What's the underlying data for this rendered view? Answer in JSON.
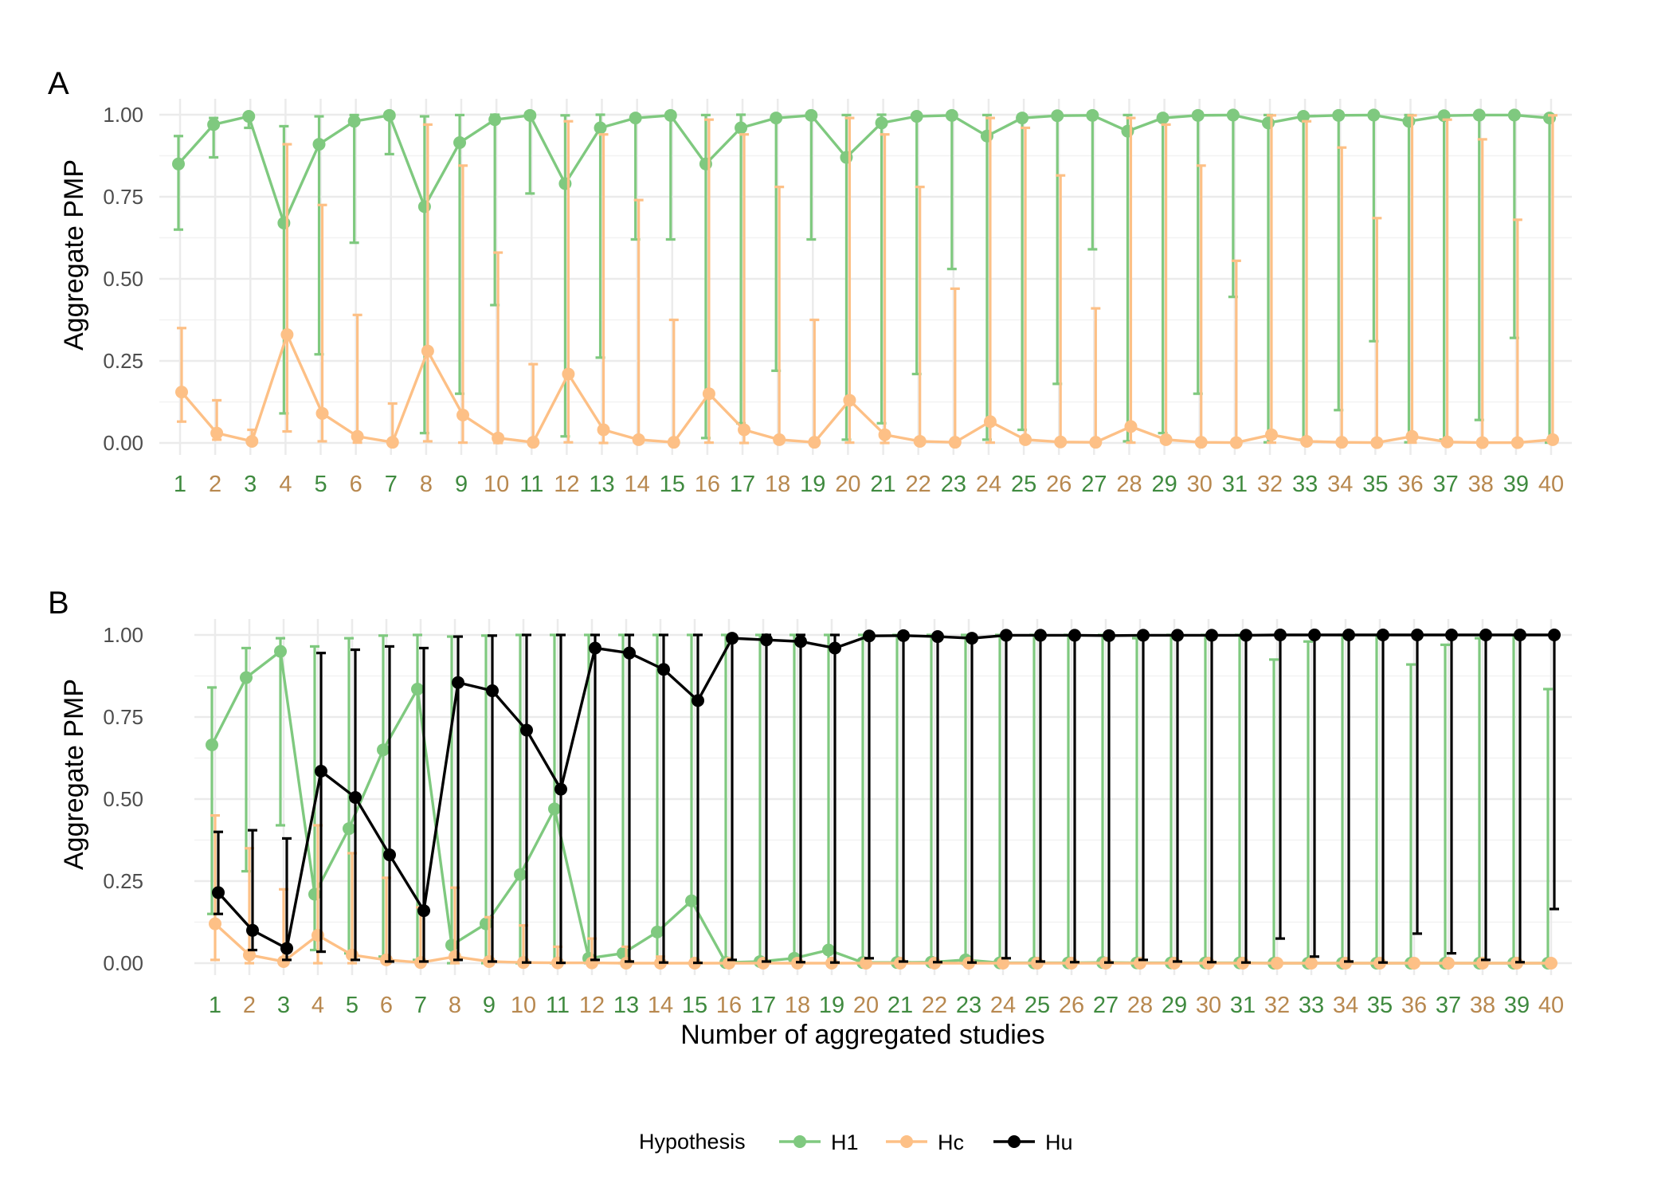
{
  "figure": {
    "legend_title": "Hypothesis",
    "xlabel": "Number of aggregated studies",
    "colors": {
      "H1": "#7fc97f",
      "Hc": "#fdc086",
      "Hu": "#000000",
      "tick_green": "#3f8a3f",
      "tick_orange": "#b8884f"
    }
  },
  "chart_data": [
    {
      "panel_label": "A",
      "type": "line",
      "ylabel": "Aggregate PMP",
      "ylim": [
        0,
        1
      ],
      "y_ticks": [
        "0.00",
        "0.25",
        "0.50",
        "0.75",
        "1.00"
      ],
      "x_ticks": [
        "1",
        "2",
        "3",
        "4",
        "5",
        "6",
        "7",
        "8",
        "9",
        "10",
        "11",
        "12",
        "13",
        "14",
        "15",
        "16",
        "17",
        "18",
        "19",
        "20",
        "21",
        "22",
        "23",
        "24",
        "25",
        "26",
        "27",
        "28",
        "29",
        "30",
        "31",
        "32",
        "33",
        "34",
        "35",
        "36",
        "37",
        "38",
        "39",
        "40"
      ],
      "x_tick_colors": [
        "green",
        "orange",
        "green",
        "orange",
        "green",
        "orange",
        "green",
        "orange",
        "green",
        "orange",
        "green",
        "orange",
        "green",
        "orange",
        "green",
        "orange",
        "green",
        "orange",
        "green",
        "orange",
        "green",
        "orange",
        "green",
        "orange",
        "green",
        "orange",
        "green",
        "orange",
        "green",
        "orange",
        "green",
        "orange",
        "green",
        "orange",
        "green",
        "orange",
        "green",
        "orange",
        "green",
        "orange"
      ],
      "grid": true,
      "series": [
        {
          "name": "H1",
          "color": "#7fc97f",
          "x": [
            1,
            2,
            3,
            4,
            5,
            6,
            7,
            8,
            9,
            10,
            11,
            12,
            13,
            14,
            15,
            16,
            17,
            18,
            19,
            20,
            21,
            22,
            23,
            24,
            25,
            26,
            27,
            28,
            29,
            30,
            31,
            32,
            33,
            34,
            35,
            36,
            37,
            38,
            39,
            40
          ],
          "values": [
            0.85,
            0.97,
            0.995,
            0.67,
            0.91,
            0.98,
            0.998,
            0.72,
            0.915,
            0.985,
            0.998,
            0.79,
            0.96,
            0.99,
            0.998,
            0.85,
            0.96,
            0.99,
            0.998,
            0.87,
            0.975,
            0.995,
            0.998,
            0.935,
            0.99,
            0.997,
            0.998,
            0.95,
            0.99,
            0.998,
            0.999,
            0.975,
            0.995,
            0.998,
            0.999,
            0.98,
            0.997,
            0.999,
            0.999,
            0.99
          ],
          "lower": [
            0.65,
            0.87,
            0.96,
            0.09,
            0.27,
            0.61,
            0.88,
            0.03,
            0.15,
            0.42,
            0.76,
            0.02,
            0.26,
            0.62,
            0.62,
            0.015,
            0.06,
            0.22,
            0.62,
            0.01,
            0.06,
            0.21,
            0.53,
            0.01,
            0.04,
            0.18,
            0.59,
            0.005,
            0.03,
            0.15,
            0.445,
            0.002,
            0.01,
            0.1,
            0.31,
            0.002,
            0.01,
            0.07,
            0.32,
            0.001
          ],
          "upper": [
            0.935,
            0.99,
            0.999,
            0.965,
            0.995,
            0.999,
            1.0,
            0.995,
            0.999,
            1.0,
            1.0,
            0.998,
            1.0,
            1.0,
            1.0,
            0.999,
            1.0,
            1.0,
            1.0,
            0.999,
            1.0,
            1.0,
            1.0,
            0.999,
            1.0,
            1.0,
            1.0,
            0.999,
            1.0,
            1.0,
            1.0,
            0.999,
            1.0,
            1.0,
            1.0,
            0.999,
            1.0,
            1.0,
            1.0,
            0.999
          ]
        },
        {
          "name": "Hc",
          "color": "#fdc086",
          "x": [
            1,
            2,
            3,
            4,
            5,
            6,
            7,
            8,
            9,
            10,
            11,
            12,
            13,
            14,
            15,
            16,
            17,
            18,
            19,
            20,
            21,
            22,
            23,
            24,
            25,
            26,
            27,
            28,
            29,
            30,
            31,
            32,
            33,
            34,
            35,
            36,
            37,
            38,
            39,
            40
          ],
          "values": [
            0.155,
            0.03,
            0.005,
            0.33,
            0.09,
            0.02,
            0.002,
            0.28,
            0.085,
            0.015,
            0.002,
            0.21,
            0.04,
            0.01,
            0.002,
            0.15,
            0.04,
            0.01,
            0.002,
            0.13,
            0.025,
            0.005,
            0.002,
            0.065,
            0.01,
            0.003,
            0.002,
            0.05,
            0.01,
            0.002,
            0.001,
            0.025,
            0.005,
            0.002,
            0.001,
            0.02,
            0.003,
            0.001,
            0.001,
            0.01
          ],
          "lower": [
            0.065,
            0.01,
            0.001,
            0.035,
            0.005,
            0.001,
            0.0,
            0.005,
            0.001,
            0.0,
            0.0,
            0.002,
            0.0,
            0.0,
            0.0,
            0.001,
            0.0,
            0.0,
            0.0,
            0.001,
            0.0,
            0.0,
            0.0,
            0.001,
            0.0,
            0.0,
            0.0,
            0.001,
            0.0,
            0.0,
            0.0,
            0.001,
            0.0,
            0.0,
            0.0,
            0.001,
            0.0,
            0.0,
            0.0,
            0.001
          ],
          "upper": [
            0.35,
            0.13,
            0.04,
            0.91,
            0.725,
            0.39,
            0.12,
            0.97,
            0.845,
            0.58,
            0.24,
            0.98,
            0.94,
            0.74,
            0.375,
            0.985,
            0.94,
            0.78,
            0.375,
            0.99,
            0.94,
            0.78,
            0.47,
            0.99,
            0.96,
            0.815,
            0.41,
            0.99,
            0.97,
            0.845,
            0.555,
            0.998,
            0.98,
            0.9,
            0.685,
            0.998,
            0.985,
            0.925,
            0.68,
            0.998
          ]
        }
      ]
    },
    {
      "panel_label": "B",
      "type": "line",
      "ylabel": "Aggregate PMP",
      "ylim": [
        0,
        1
      ],
      "y_ticks": [
        "0.00",
        "0.25",
        "0.50",
        "0.75",
        "1.00"
      ],
      "x_ticks": [
        "1",
        "2",
        "3",
        "4",
        "5",
        "6",
        "7",
        "8",
        "9",
        "10",
        "11",
        "12",
        "13",
        "14",
        "15",
        "16",
        "17",
        "18",
        "19",
        "20",
        "21",
        "22",
        "23",
        "24",
        "25",
        "26",
        "27",
        "28",
        "29",
        "30",
        "31",
        "32",
        "33",
        "34",
        "35",
        "36",
        "37",
        "38",
        "39",
        "40"
      ],
      "x_tick_colors": [
        "green",
        "orange",
        "green",
        "orange",
        "green",
        "orange",
        "green",
        "orange",
        "green",
        "orange",
        "green",
        "orange",
        "green",
        "orange",
        "green",
        "orange",
        "green",
        "orange",
        "green",
        "orange",
        "green",
        "orange",
        "green",
        "orange",
        "green",
        "orange",
        "green",
        "orange",
        "green",
        "orange",
        "green",
        "orange",
        "green",
        "orange",
        "green",
        "orange",
        "green",
        "orange",
        "green",
        "orange"
      ],
      "grid": true,
      "series": [
        {
          "name": "H1",
          "color": "#7fc97f",
          "x": [
            1,
            2,
            3,
            4,
            5,
            6,
            7,
            8,
            9,
            10,
            11,
            12,
            13,
            14,
            15,
            16,
            17,
            18,
            19,
            20,
            21,
            22,
            23,
            24,
            25,
            26,
            27,
            28,
            29,
            30,
            31,
            32,
            33,
            34,
            35,
            36,
            37,
            38,
            39,
            40
          ],
          "values": [
            0.665,
            0.87,
            0.95,
            0.21,
            0.41,
            0.65,
            0.835,
            0.055,
            0.12,
            0.27,
            0.47,
            0.015,
            0.03,
            0.095,
            0.19,
            0.002,
            0.005,
            0.015,
            0.04,
            0.002,
            0.002,
            0.003,
            0.01,
            0.001,
            0.001,
            0.001,
            0.002,
            0.001,
            0.001,
            0.001,
            0.001,
            0.0,
            0.0,
            0.0,
            0.0,
            0.0,
            0.0,
            0.0,
            0.0,
            0.0
          ],
          "lower": [
            0.15,
            0.28,
            0.42,
            0.04,
            0.03,
            0.02,
            0.01,
            0.0,
            0.0,
            0.0,
            0.0,
            0.0,
            0.0,
            0.0,
            0.0,
            0.0,
            0.0,
            0.0,
            0.0,
            0.0,
            0.0,
            0.0,
            0.0,
            0.0,
            0.0,
            0.0,
            0.0,
            0.0,
            0.0,
            0.0,
            0.0,
            0.0,
            0.0,
            0.0,
            0.0,
            0.0,
            0.0,
            0.0,
            0.0,
            0.0
          ],
          "upper": [
            0.84,
            0.96,
            0.99,
            0.965,
            0.99,
            0.998,
            1.0,
            0.995,
            0.998,
            1.0,
            1.0,
            1.0,
            1.0,
            1.0,
            1.0,
            1.0,
            1.0,
            1.0,
            1.0,
            1.0,
            1.0,
            1.0,
            1.0,
            1.0,
            1.0,
            1.0,
            1.0,
            0.99,
            1.0,
            1.0,
            1.0,
            0.925,
            0.98,
            1.0,
            1.0,
            0.91,
            0.97,
            0.99,
            1.0,
            0.835
          ]
        },
        {
          "name": "Hc",
          "color": "#fdc086",
          "x": [
            1,
            2,
            3,
            4,
            5,
            6,
            7,
            8,
            9,
            10,
            11,
            12,
            13,
            14,
            15,
            16,
            17,
            18,
            19,
            20,
            21,
            22,
            23,
            24,
            25,
            26,
            27,
            28,
            29,
            30,
            31,
            32,
            33,
            34,
            35,
            36,
            37,
            38,
            39,
            40
          ],
          "values": [
            0.12,
            0.025,
            0.005,
            0.085,
            0.025,
            0.01,
            0.002,
            0.02,
            0.005,
            0.002,
            0.001,
            0.001,
            0.0,
            0.0,
            0.0,
            0.0,
            0.0,
            0.0,
            0.0,
            0.0,
            0.0,
            0.0,
            0.0,
            0.0,
            0.0,
            0.0,
            0.0,
            0.0,
            0.0,
            0.0,
            0.0,
            0.0,
            0.0,
            0.0,
            0.0,
            0.0,
            0.0,
            0.0,
            0.0,
            0.0
          ],
          "lower": [
            0.01,
            0.0,
            0.0,
            0.0,
            0.0,
            0.0,
            0.0,
            0.0,
            0.0,
            0.0,
            0.0,
            0.0,
            0.0,
            0.0,
            0.0,
            0.0,
            0.0,
            0.0,
            0.0,
            0.0,
            0.0,
            0.0,
            0.0,
            0.0,
            0.0,
            0.0,
            0.0,
            0.0,
            0.0,
            0.0,
            0.0,
            0.0,
            0.0,
            0.0,
            0.0,
            0.0,
            0.0,
            0.0,
            0.0,
            0.0
          ],
          "upper": [
            0.45,
            0.35,
            0.225,
            0.42,
            0.335,
            0.26,
            0.17,
            0.23,
            0.14,
            0.115,
            0.05,
            0.075,
            0.05,
            0.02,
            0.01,
            0.005,
            0.005,
            0.005,
            0.005,
            0.005,
            0.0,
            0.0,
            0.0,
            0.0,
            0.0,
            0.0,
            0.0,
            0.0,
            0.0,
            0.0,
            0.0,
            0.0,
            0.0,
            0.0,
            0.0,
            0.0,
            0.0,
            0.0,
            0.0,
            0.0
          ]
        },
        {
          "name": "Hu",
          "color": "#000000",
          "x": [
            1,
            2,
            3,
            4,
            5,
            6,
            7,
            8,
            9,
            10,
            11,
            12,
            13,
            14,
            15,
            16,
            17,
            18,
            19,
            20,
            21,
            22,
            23,
            24,
            25,
            26,
            27,
            28,
            29,
            30,
            31,
            32,
            33,
            34,
            35,
            36,
            37,
            38,
            39,
            40
          ],
          "values": [
            0.215,
            0.1,
            0.045,
            0.585,
            0.505,
            0.33,
            0.16,
            0.855,
            0.83,
            0.71,
            0.53,
            0.96,
            0.945,
            0.895,
            0.8,
            0.99,
            0.985,
            0.98,
            0.96,
            0.997,
            0.998,
            0.995,
            0.99,
            0.999,
            0.999,
            0.999,
            0.998,
            0.999,
            0.999,
            0.999,
            0.999,
            1.0,
            1.0,
            1.0,
            1.0,
            1.0,
            1.0,
            1.0,
            1.0,
            1.0
          ],
          "lower": [
            0.15,
            0.04,
            0.01,
            0.035,
            0.01,
            0.005,
            0.005,
            0.01,
            0.005,
            0.002,
            0.001,
            0.01,
            0.005,
            0.002,
            0.001,
            0.01,
            0.005,
            0.003,
            0.002,
            0.015,
            0.005,
            0.003,
            0.002,
            0.015,
            0.005,
            0.003,
            0.002,
            0.01,
            0.005,
            0.003,
            0.002,
            0.075,
            0.02,
            0.005,
            0.002,
            0.09,
            0.03,
            0.01,
            0.003,
            0.165
          ],
          "upper": [
            0.4,
            0.405,
            0.38,
            0.945,
            0.955,
            0.965,
            0.96,
            0.995,
            0.998,
            1.0,
            1.0,
            1.0,
            1.0,
            1.0,
            1.0,
            1.0,
            1.0,
            1.0,
            1.0,
            1.0,
            1.0,
            1.0,
            1.0,
            1.0,
            1.0,
            1.0,
            1.0,
            1.0,
            1.0,
            1.0,
            1.0,
            1.0,
            1.0,
            1.0,
            1.0,
            1.0,
            1.0,
            1.0,
            1.0,
            1.0
          ]
        }
      ]
    }
  ]
}
